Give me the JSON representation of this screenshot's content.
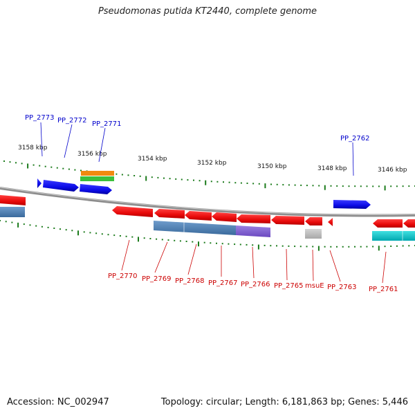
{
  "title": "Pseudomonas putida KT2440, complete genome",
  "footer": {
    "accession": "Accession: NC_002947",
    "stats": "Topology: circular; Length: 6,181,863 bp; Genes: 5,446"
  },
  "colors": {
    "backbone": "#8c8c8c",
    "tick": "#1a7a1a",
    "forward_gene": "#1010e0",
    "reverse_gene": "#e81010",
    "label_forward": "#0000cc",
    "label_reverse": "#cc0000"
  },
  "scale_labels": [
    "3158 kbp",
    "3156 kbp",
    "3154 kbp",
    "3152 kbp",
    "3150 kbp",
    "3148 kbp",
    "3146 kbp"
  ],
  "genes_forward": [
    {
      "label": "PP_2773"
    },
    {
      "label": "PP_2772"
    },
    {
      "label": "PP_2771"
    },
    {
      "label": "PP_2762"
    }
  ],
  "genes_reverse": [
    {
      "label": "PP_2770"
    },
    {
      "label": "PP_2769"
    },
    {
      "label": "PP_2768"
    },
    {
      "label": "PP_2767"
    },
    {
      "label": "PP_2766"
    },
    {
      "label": "PP_2765"
    },
    {
      "label": "msuE"
    },
    {
      "label": "PP_2763"
    },
    {
      "label": "PP_2761"
    }
  ]
}
